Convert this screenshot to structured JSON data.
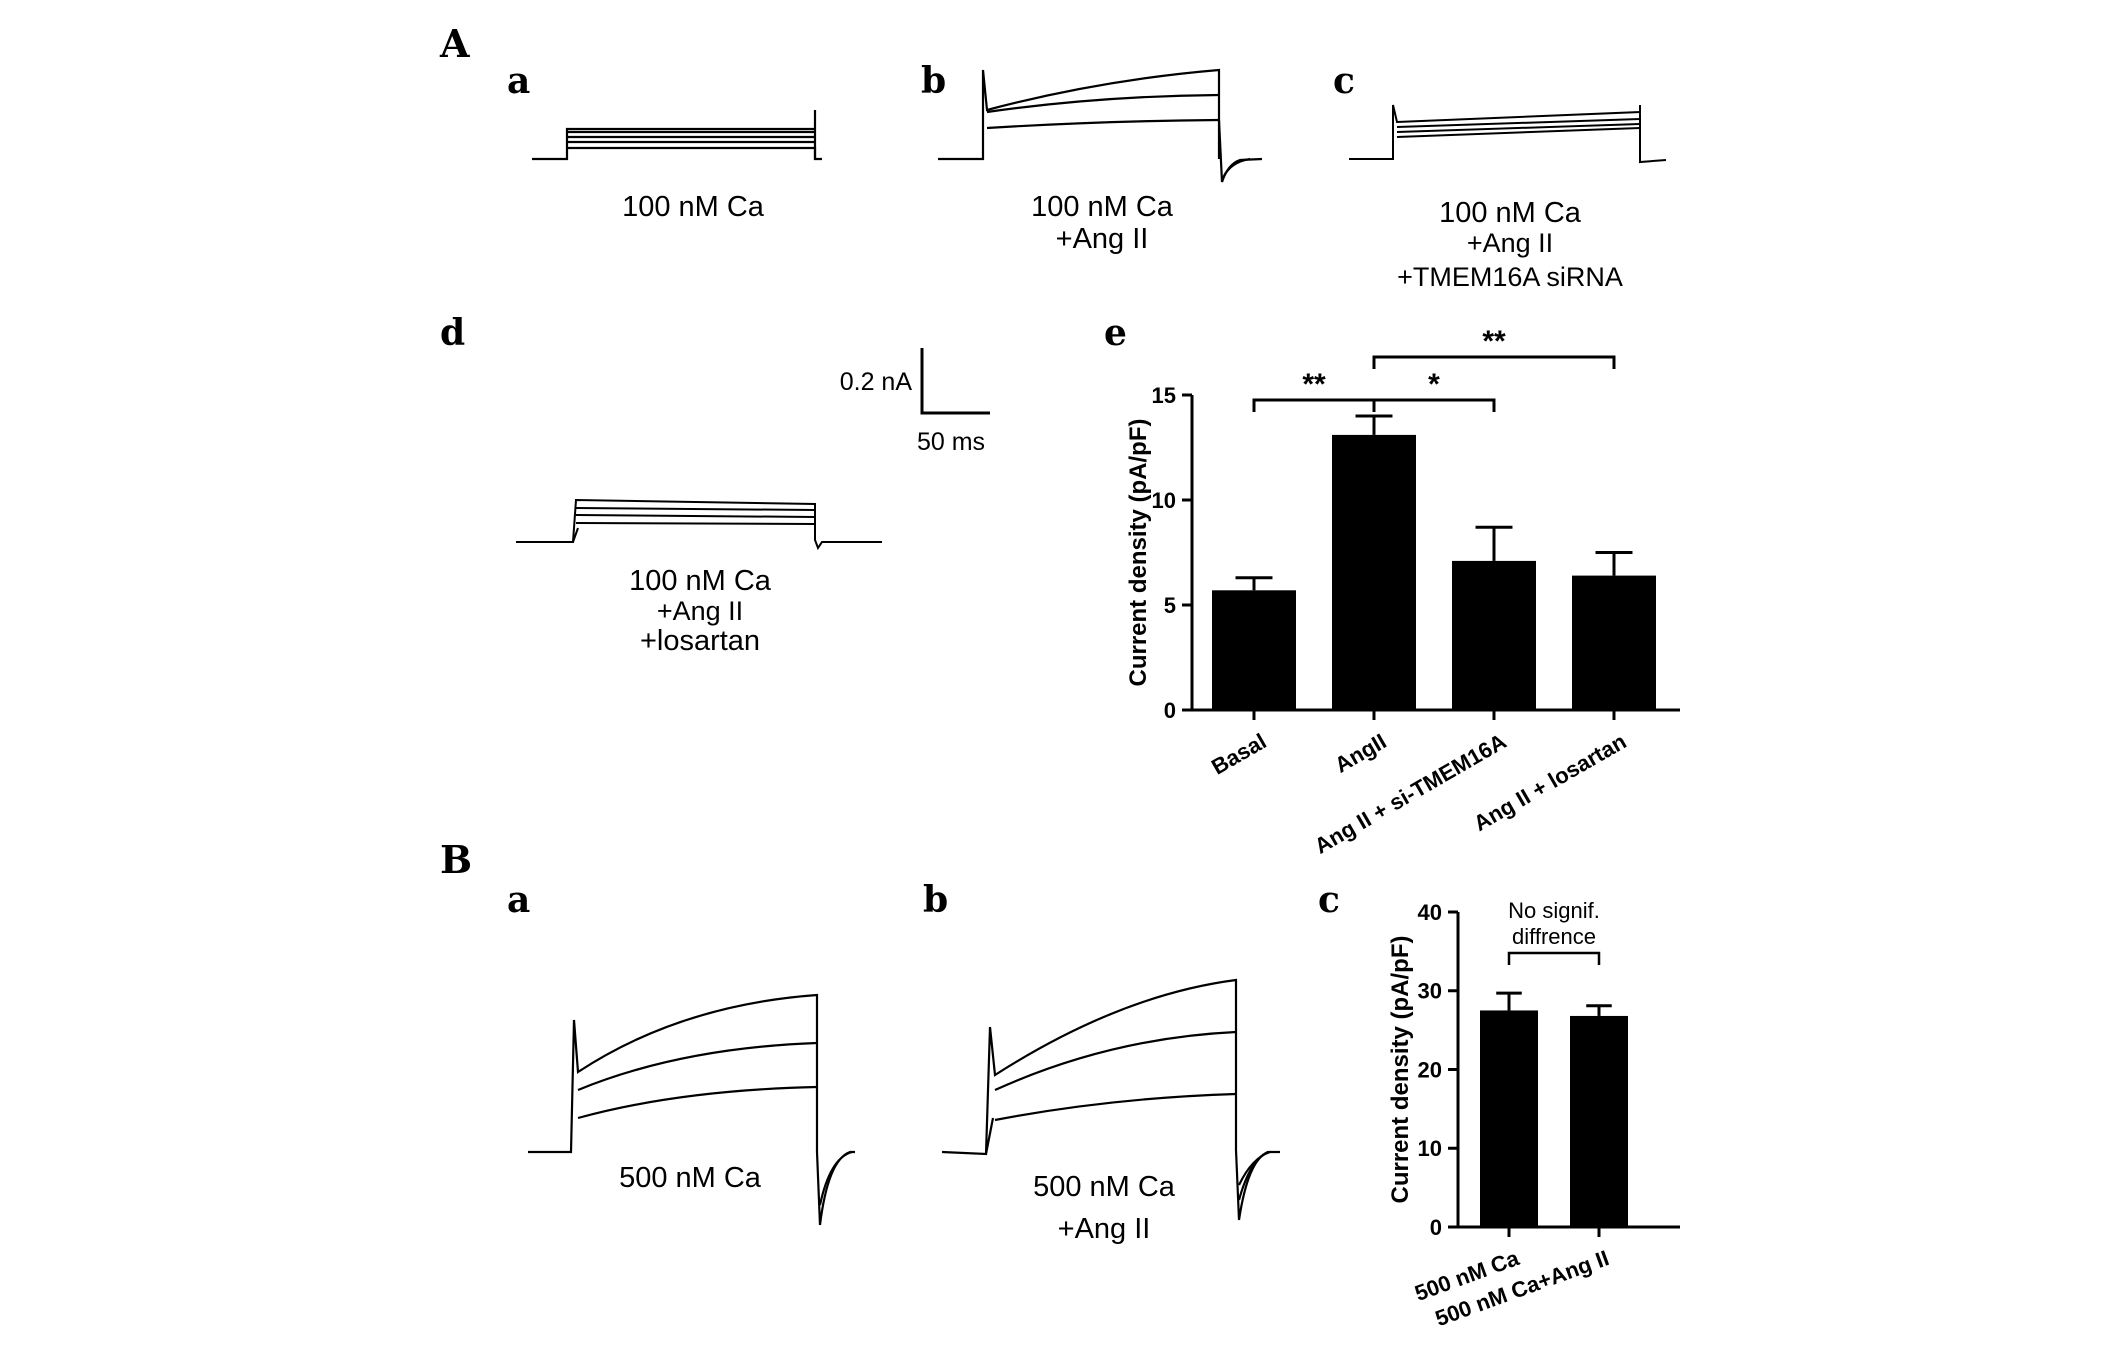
{
  "panels": {
    "A": "A",
    "Aa": "a",
    "Ab": "b",
    "Ac": "c",
    "Ad": "d",
    "Ae": "e",
    "B": "B",
    "Ba": "a",
    "Bb": "b",
    "Bc": "c"
  },
  "traces": {
    "Aa_label": [
      "100 nM Ca"
    ],
    "Ab_label": [
      "100 nM Ca",
      "+Ang II"
    ],
    "Ac_label": [
      "100 nM Ca",
      "+Ang II",
      "+TMEM16A siRNA"
    ],
    "Ad_label": [
      "100 nM Ca",
      "+Ang II",
      "+losartan"
    ],
    "Ba_label": [
      "500 nM Ca"
    ],
    "Bb_label": [
      "500 nM Ca",
      "+Ang II"
    ]
  },
  "scale_bar": {
    "current": "0.2 nA",
    "time": "50 ms"
  },
  "chart_data": [
    {
      "panel": "A-e",
      "type": "bar",
      "categories": [
        "Basal",
        "AngII",
        "Ang II + si-TMEM16A",
        "Ang II + losartan"
      ],
      "values": [
        5.7,
        13.1,
        7.1,
        6.4
      ],
      "errors": [
        0.6,
        0.9,
        1.6,
        1.1
      ],
      "ylabel": "Current density (pA/pF)",
      "ylim": [
        0,
        15
      ],
      "yticks": [
        0,
        5,
        10,
        15
      ],
      "bar_color": "#000000",
      "significance": [
        {
          "from": 0,
          "to": 1,
          "label": "**"
        },
        {
          "from": 1,
          "to": 2,
          "label": "*"
        },
        {
          "from": 1,
          "to": 3,
          "label": "**"
        }
      ]
    },
    {
      "panel": "B-c",
      "type": "bar",
      "categories": [
        "500 nM Ca",
        "500 nM Ca+Ang II"
      ],
      "values": [
        27.5,
        26.8
      ],
      "errors": [
        2.2,
        1.3
      ],
      "ylabel": "Current density (pA/pF)",
      "ylim": [
        0,
        40
      ],
      "yticks": [
        0,
        10,
        20,
        30,
        40
      ],
      "bar_color": "#000000",
      "annotation": [
        "No signif.",
        "diffrence"
      ]
    }
  ]
}
